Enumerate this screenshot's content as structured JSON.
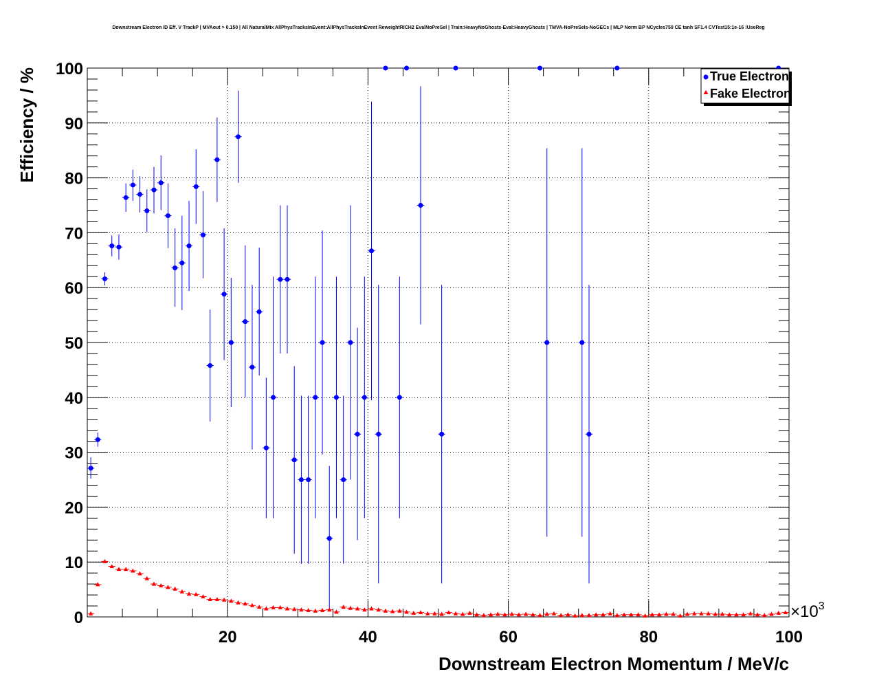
{
  "chart_data": {
    "type": "scatter",
    "title": "Downstream Electron ID Eff. V TrackP | MVAout > 0.150 | All NaturalMix AllPhysTracksInEvent:AllPhysTracksInEvent ReweightRICH2 EvalNoPreSel | Train:HeavyNoGhosts-Eval:HeavyGhosts | TMVA-NoPreSels-NoGECs | MLP Norm BP NCycles750 CE tanh SF1.4 CVTest15:1e-16 !UseReg",
    "xlabel": "Downstream Electron Momentum / MeV/c",
    "ylabel": "Efficiency / %",
    "x_multiplier": "×10",
    "x_multiplier_exp": "3",
    "xlim": [
      0,
      100
    ],
    "ylim": [
      0,
      100
    ],
    "x_ticks": [
      "20",
      "40",
      "60",
      "80",
      "100"
    ],
    "y_ticks": [
      "0",
      "10",
      "20",
      "30",
      "40",
      "50",
      "60",
      "70",
      "80",
      "90",
      "100"
    ],
    "grid": true,
    "legend_position": "top-right",
    "series": [
      {
        "name": "True Electron",
        "color": "#0000ff",
        "marker": "circle",
        "points": [
          {
            "x": 0.5,
            "y": 27.1,
            "lo": 25.2,
            "hi": 29.1
          },
          {
            "x": 1.5,
            "y": 32.3,
            "lo": 31.0,
            "hi": 33.6
          },
          {
            "x": 2.5,
            "y": 61.6,
            "lo": 60.4,
            "hi": 62.8
          },
          {
            "x": 3.5,
            "y": 67.6,
            "lo": 65.7,
            "hi": 69.5
          },
          {
            "x": 4.5,
            "y": 67.4,
            "lo": 65.1,
            "hi": 69.7
          },
          {
            "x": 5.5,
            "y": 76.4,
            "lo": 73.8,
            "hi": 79.0
          },
          {
            "x": 6.5,
            "y": 78.7,
            "lo": 75.8,
            "hi": 81.5
          },
          {
            "x": 7.5,
            "y": 77.0,
            "lo": 73.7,
            "hi": 80.3
          },
          {
            "x": 8.5,
            "y": 74.0,
            "lo": 70.1,
            "hi": 77.9
          },
          {
            "x": 9.5,
            "y": 77.8,
            "lo": 73.5,
            "hi": 82.0
          },
          {
            "x": 10.5,
            "y": 79.1,
            "lo": 74.1,
            "hi": 84.1
          },
          {
            "x": 11.5,
            "y": 73.1,
            "lo": 67.2,
            "hi": 79.0
          },
          {
            "x": 12.5,
            "y": 63.6,
            "lo": 56.5,
            "hi": 70.8
          },
          {
            "x": 13.5,
            "y": 64.5,
            "lo": 55.9,
            "hi": 73.1
          },
          {
            "x": 14.5,
            "y": 67.6,
            "lo": 59.4,
            "hi": 75.8
          },
          {
            "x": 15.5,
            "y": 78.4,
            "lo": 71.6,
            "hi": 85.2
          },
          {
            "x": 16.5,
            "y": 69.6,
            "lo": 61.7,
            "hi": 77.6
          },
          {
            "x": 17.5,
            "y": 45.8,
            "lo": 35.6,
            "hi": 56.0
          },
          {
            "x": 18.5,
            "y": 83.3,
            "lo": 75.6,
            "hi": 91.0
          },
          {
            "x": 19.5,
            "y": 58.8,
            "lo": 46.8,
            "hi": 70.8
          },
          {
            "x": 20.5,
            "y": 50.0,
            "lo": 38.2,
            "hi": 61.8
          },
          {
            "x": 21.5,
            "y": 87.5,
            "lo": 79.1,
            "hi": 95.9
          },
          {
            "x": 22.5,
            "y": 53.8,
            "lo": 40.0,
            "hi": 67.7
          },
          {
            "x": 23.5,
            "y": 45.5,
            "lo": 30.5,
            "hi": 60.5
          },
          {
            "x": 24.5,
            "y": 55.6,
            "lo": 44.0,
            "hi": 67.3
          },
          {
            "x": 25.5,
            "y": 30.8,
            "lo": 18.0,
            "hi": 43.6
          },
          {
            "x": 26.5,
            "y": 40.0,
            "lo": 18.0,
            "hi": 62.0
          },
          {
            "x": 27.5,
            "y": 61.5,
            "lo": 48.0,
            "hi": 75.0
          },
          {
            "x": 28.5,
            "y": 61.5,
            "lo": 48.0,
            "hi": 75.0
          },
          {
            "x": 29.5,
            "y": 28.6,
            "lo": 11.5,
            "hi": 45.7
          },
          {
            "x": 30.5,
            "y": 25.0,
            "lo": 9.7,
            "hi": 40.3
          },
          {
            "x": 31.5,
            "y": 25.0,
            "lo": 9.7,
            "hi": 40.3
          },
          {
            "x": 32.5,
            "y": 40.0,
            "lo": 18.0,
            "hi": 62.0
          },
          {
            "x": 33.5,
            "y": 50.0,
            "lo": 29.6,
            "hi": 70.4
          },
          {
            "x": 34.5,
            "y": 14.3,
            "lo": 1.1,
            "hi": 27.5
          },
          {
            "x": 35.5,
            "y": 40.0,
            "lo": 18.0,
            "hi": 62.0
          },
          {
            "x": 36.5,
            "y": 25.0,
            "lo": 9.7,
            "hi": 40.3
          },
          {
            "x": 37.5,
            "y": 50.0,
            "lo": 25.0,
            "hi": 75.0
          },
          {
            "x": 38.5,
            "y": 33.3,
            "lo": 14.0,
            "hi": 52.7
          },
          {
            "x": 39.5,
            "y": 40.0,
            "lo": 18.0,
            "hi": 62.0
          },
          {
            "x": 40.5,
            "y": 66.7,
            "lo": 39.5,
            "hi": 93.9
          },
          {
            "x": 41.5,
            "y": 33.3,
            "lo": 6.1,
            "hi": 60.5
          },
          {
            "x": 42.5,
            "y": 100.0,
            "lo": 100.0,
            "hi": 100.0
          },
          {
            "x": 44.5,
            "y": 40.0,
            "lo": 18.0,
            "hi": 62.0
          },
          {
            "x": 45.5,
            "y": 100.0,
            "lo": 100.0,
            "hi": 100.0
          },
          {
            "x": 47.5,
            "y": 75.0,
            "lo": 53.3,
            "hi": 96.7
          },
          {
            "x": 50.5,
            "y": 33.3,
            "lo": 6.1,
            "hi": 60.5
          },
          {
            "x": 52.5,
            "y": 100.0,
            "lo": 100.0,
            "hi": 100.0
          },
          {
            "x": 64.5,
            "y": 100.0,
            "lo": 100.0,
            "hi": 100.0
          },
          {
            "x": 65.5,
            "y": 50.0,
            "lo": 14.6,
            "hi": 85.4
          },
          {
            "x": 70.5,
            "y": 50.0,
            "lo": 14.6,
            "hi": 85.4
          },
          {
            "x": 71.5,
            "y": 33.3,
            "lo": 6.1,
            "hi": 60.5
          },
          {
            "x": 75.5,
            "y": 100.0,
            "lo": 100.0,
            "hi": 100.0
          },
          {
            "x": 98.5,
            "y": 100.0,
            "lo": 100.0,
            "hi": 100.0
          }
        ]
      },
      {
        "name": "Fake Electron",
        "color": "#ff0000",
        "marker": "triangle",
        "points": [
          {
            "x": 0.5,
            "y": 0.6
          },
          {
            "x": 1.5,
            "y": 5.9
          },
          {
            "x": 2.5,
            "y": 10.1
          },
          {
            "x": 3.5,
            "y": 9.2
          },
          {
            "x": 4.5,
            "y": 8.7
          },
          {
            "x": 5.5,
            "y": 8.7
          },
          {
            "x": 6.5,
            "y": 8.4
          },
          {
            "x": 7.5,
            "y": 7.9
          },
          {
            "x": 8.5,
            "y": 7.0
          },
          {
            "x": 9.5,
            "y": 6.0
          },
          {
            "x": 10.5,
            "y": 5.7
          },
          {
            "x": 11.5,
            "y": 5.4
          },
          {
            "x": 12.5,
            "y": 5.1
          },
          {
            "x": 13.5,
            "y": 4.6
          },
          {
            "x": 14.5,
            "y": 4.2
          },
          {
            "x": 15.5,
            "y": 4.1
          },
          {
            "x": 16.5,
            "y": 3.7
          },
          {
            "x": 17.5,
            "y": 3.2
          },
          {
            "x": 18.5,
            "y": 3.2
          },
          {
            "x": 19.5,
            "y": 3.1
          },
          {
            "x": 20.5,
            "y": 2.9
          },
          {
            "x": 21.5,
            "y": 2.6
          },
          {
            "x": 22.5,
            "y": 2.4
          },
          {
            "x": 23.5,
            "y": 2.1
          },
          {
            "x": 24.5,
            "y": 1.8
          },
          {
            "x": 25.5,
            "y": 1.5
          },
          {
            "x": 26.5,
            "y": 1.7
          },
          {
            "x": 27.5,
            "y": 1.7
          },
          {
            "x": 28.5,
            "y": 1.5
          },
          {
            "x": 29.5,
            "y": 1.4
          },
          {
            "x": 30.5,
            "y": 1.3
          },
          {
            "x": 31.5,
            "y": 1.2
          },
          {
            "x": 32.5,
            "y": 1.1
          },
          {
            "x": 33.5,
            "y": 1.2
          },
          {
            "x": 34.5,
            "y": 1.3
          },
          {
            "x": 35.5,
            "y": 0.9
          },
          {
            "x": 36.5,
            "y": 1.8
          },
          {
            "x": 37.5,
            "y": 1.6
          },
          {
            "x": 38.5,
            "y": 1.5
          },
          {
            "x": 39.5,
            "y": 1.3
          },
          {
            "x": 40.5,
            "y": 1.5
          },
          {
            "x": 41.5,
            "y": 1.3
          },
          {
            "x": 42.5,
            "y": 1.1
          },
          {
            "x": 43.5,
            "y": 1.0
          },
          {
            "x": 44.5,
            "y": 1.1
          },
          {
            "x": 45.5,
            "y": 0.9
          },
          {
            "x": 46.5,
            "y": 0.7
          },
          {
            "x": 47.5,
            "y": 0.8
          },
          {
            "x": 48.5,
            "y": 0.6
          },
          {
            "x": 49.5,
            "y": 0.6
          },
          {
            "x": 50.5,
            "y": 0.5
          },
          {
            "x": 51.5,
            "y": 0.8
          },
          {
            "x": 52.5,
            "y": 0.6
          },
          {
            "x": 53.5,
            "y": 0.5
          },
          {
            "x": 54.5,
            "y": 0.7
          },
          {
            "x": 55.5,
            "y": 0.4
          },
          {
            "x": 56.5,
            "y": 0.3
          },
          {
            "x": 57.5,
            "y": 0.4
          },
          {
            "x": 58.5,
            "y": 0.5
          },
          {
            "x": 59.5,
            "y": 0.4
          },
          {
            "x": 60.5,
            "y": 0.5
          },
          {
            "x": 61.5,
            "y": 0.4
          },
          {
            "x": 62.5,
            "y": 0.5
          },
          {
            "x": 63.5,
            "y": 0.4
          },
          {
            "x": 64.5,
            "y": 0.3
          },
          {
            "x": 65.5,
            "y": 0.5
          },
          {
            "x": 66.5,
            "y": 0.6
          },
          {
            "x": 67.5,
            "y": 0.3
          },
          {
            "x": 68.5,
            "y": 0.4
          },
          {
            "x": 69.5,
            "y": 0.2
          },
          {
            "x": 70.5,
            "y": 0.3
          },
          {
            "x": 71.5,
            "y": 0.3
          },
          {
            "x": 72.5,
            "y": 0.4
          },
          {
            "x": 73.5,
            "y": 0.4
          },
          {
            "x": 74.5,
            "y": 0.6
          },
          {
            "x": 75.5,
            "y": 0.3
          },
          {
            "x": 76.5,
            "y": 0.4
          },
          {
            "x": 77.5,
            "y": 0.4
          },
          {
            "x": 78.5,
            "y": 0.4
          },
          {
            "x": 79.5,
            "y": 0.2
          },
          {
            "x": 80.5,
            "y": 0.4
          },
          {
            "x": 81.5,
            "y": 0.4
          },
          {
            "x": 82.5,
            "y": 0.5
          },
          {
            "x": 83.5,
            "y": 0.5
          },
          {
            "x": 84.5,
            "y": 0.2
          },
          {
            "x": 85.5,
            "y": 0.5
          },
          {
            "x": 86.5,
            "y": 0.6
          },
          {
            "x": 87.5,
            "y": 0.6
          },
          {
            "x": 88.5,
            "y": 0.6
          },
          {
            "x": 89.5,
            "y": 0.5
          },
          {
            "x": 90.5,
            "y": 0.5
          },
          {
            "x": 91.5,
            "y": 0.4
          },
          {
            "x": 92.5,
            "y": 0.4
          },
          {
            "x": 93.5,
            "y": 0.4
          },
          {
            "x": 94.5,
            "y": 0.6
          },
          {
            "x": 95.5,
            "y": 0.4
          },
          {
            "x": 96.5,
            "y": 0.3
          },
          {
            "x": 97.5,
            "y": 0.5
          },
          {
            "x": 98.5,
            "y": 0.7
          },
          {
            "x": 99.5,
            "y": 0.8
          }
        ]
      }
    ]
  }
}
